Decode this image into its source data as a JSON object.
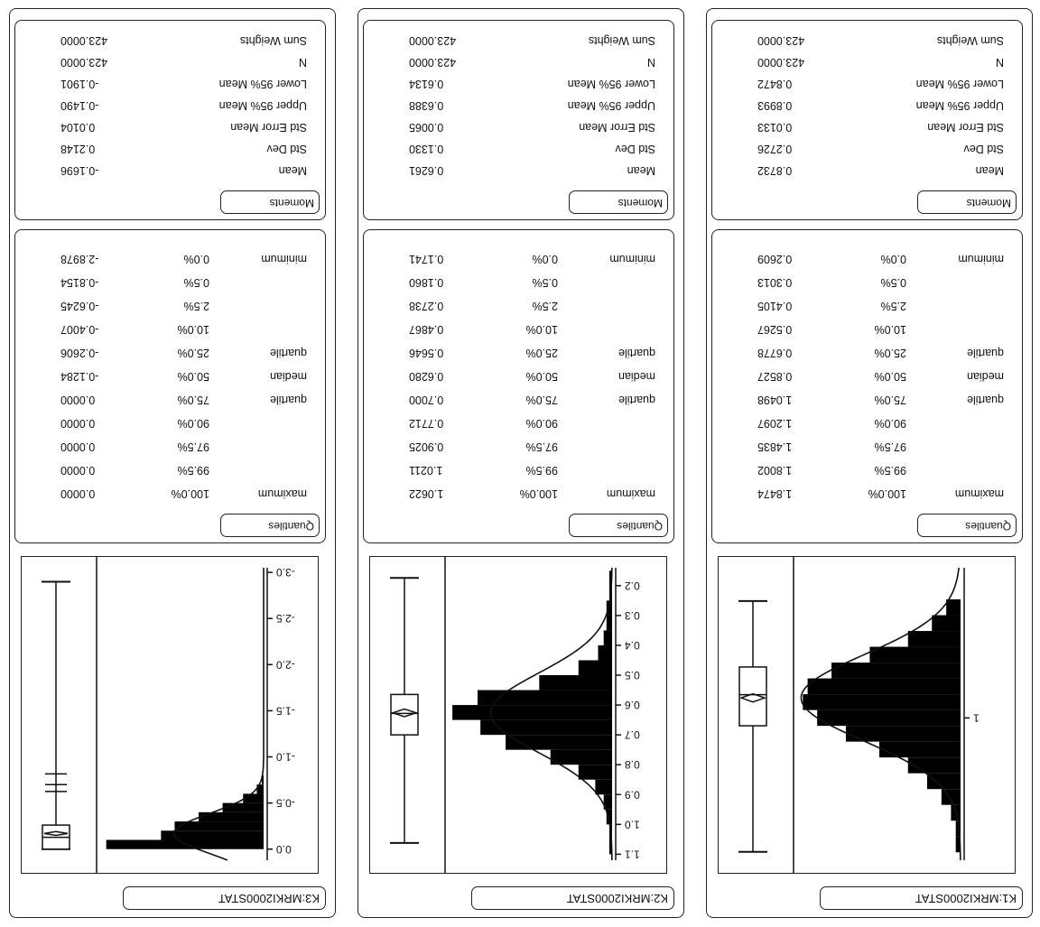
{
  "panels": [
    {
      "title": "K1:MRKI2000STAT",
      "axis_ticks": [
        {
          "v": 1,
          "label": "1"
        }
      ],
      "axis_range": [
        0.05,
        1.9
      ],
      "boxplot": {
        "min": 0.2609,
        "q1": 0.6778,
        "median": 0.8527,
        "q3": 1.0498,
        "max": 1.8474,
        "mean": 0.8732,
        "ci": [
          0.8472,
          0.8993
        ],
        "whisker_lo": 0.2609,
        "whisker_hi": 1.8474
      },
      "hist": [
        {
          "x0": 0.25,
          "x1": 0.35,
          "c": 3
        },
        {
          "x0": 0.35,
          "x1": 0.45,
          "c": 6
        },
        {
          "x0": 0.45,
          "x1": 0.55,
          "c": 11
        },
        {
          "x0": 0.55,
          "x1": 0.65,
          "c": 19
        },
        {
          "x0": 0.65,
          "x1": 0.75,
          "c": 27
        },
        {
          "x0": 0.75,
          "x1": 0.85,
          "c": 32
        },
        {
          "x0": 0.85,
          "x1": 0.95,
          "c": 33
        },
        {
          "x0": 0.95,
          "x1": 1.05,
          "c": 30
        },
        {
          "x0": 1.05,
          "x1": 1.15,
          "c": 24
        },
        {
          "x0": 1.15,
          "x1": 1.25,
          "c": 17
        },
        {
          "x0": 1.25,
          "x1": 1.35,
          "c": 11
        },
        {
          "x0": 1.35,
          "x1": 1.45,
          "c": 7
        },
        {
          "x0": 1.45,
          "x1": 1.55,
          "c": 4
        },
        {
          "x0": 1.55,
          "x1": 1.65,
          "c": 2
        },
        {
          "x0": 1.65,
          "x1": 1.75,
          "c": 1
        },
        {
          "x0": 1.75,
          "x1": 1.85,
          "c": 1
        }
      ],
      "hist_max": 34,
      "normal": {
        "mean": 0.8732,
        "sd": 0.2726
      },
      "quantiles_header": "Quantiles",
      "quantiles": [
        {
          "label": "maximum",
          "pct": "100.0%",
          "value": "1.8474"
        },
        {
          "label": "",
          "pct": "99.5%",
          "value": "1.8002"
        },
        {
          "label": "",
          "pct": "97.5%",
          "value": "1.4835"
        },
        {
          "label": "",
          "pct": "90.0%",
          "value": "1.2097"
        },
        {
          "label": "quartile",
          "pct": "75.0%",
          "value": "1.0498"
        },
        {
          "label": "median",
          "pct": "50.0%",
          "value": "0.8527"
        },
        {
          "label": "quartile",
          "pct": "25.0%",
          "value": "0.6778"
        },
        {
          "label": "",
          "pct": "10.0%",
          "value": "0.5267"
        },
        {
          "label": "",
          "pct": "2.5%",
          "value": "0.4105"
        },
        {
          "label": "",
          "pct": "0.5%",
          "value": "0.3013"
        },
        {
          "label": "minimum",
          "pct": "0.0%",
          "value": "0.2609"
        }
      ],
      "moments_header": "Moments",
      "moments": [
        {
          "label": "Mean",
          "value": "0.8732"
        },
        {
          "label": "Std Dev",
          "value": "0.2726"
        },
        {
          "label": "Std Error Mean",
          "value": "0.0133"
        },
        {
          "label": "Upper 95% Mean",
          "value": "0.8993"
        },
        {
          "label": "Lower 95% Mean",
          "value": "0.8472"
        },
        {
          "label": "N",
          "value": "423.0000"
        },
        {
          "label": "Sum Weights",
          "value": "423.0000"
        }
      ]
    },
    {
      "title": "K2:MRKI2000STAT",
      "axis_ticks": [
        {
          "v": 0.2,
          "label": "0.2"
        },
        {
          "v": 0.3,
          "label": "0.3"
        },
        {
          "v": 0.4,
          "label": "0.4"
        },
        {
          "v": 0.5,
          "label": "0.5"
        },
        {
          "v": 0.6,
          "label": "0.6"
        },
        {
          "v": 0.7,
          "label": "0.7"
        },
        {
          "v": 0.8,
          "label": "0.8"
        },
        {
          "v": 0.9,
          "label": "0.9"
        },
        {
          "v": 1.0,
          "label": "1.0"
        },
        {
          "v": 1.1,
          "label": "1.1"
        }
      ],
      "axis_range": [
        0.14,
        1.12
      ],
      "boxplot": {
        "min": 0.1741,
        "q1": 0.5646,
        "median": 0.628,
        "q3": 0.7,
        "max": 1.0622,
        "mean": 0.6261,
        "ci": [
          0.6134,
          0.6388
        ],
        "whisker_lo": 0.1741,
        "whisker_hi": 1.0622
      },
      "hist": [
        {
          "x0": 0.15,
          "x1": 0.2,
          "c": 1
        },
        {
          "x0": 0.2,
          "x1": 0.25,
          "c": 1
        },
        {
          "x0": 0.25,
          "x1": 0.3,
          "c": 2
        },
        {
          "x0": 0.3,
          "x1": 0.35,
          "c": 2
        },
        {
          "x0": 0.35,
          "x1": 0.4,
          "c": 3
        },
        {
          "x0": 0.4,
          "x1": 0.45,
          "c": 5
        },
        {
          "x0": 0.45,
          "x1": 0.5,
          "c": 12
        },
        {
          "x0": 0.5,
          "x1": 0.55,
          "c": 26
        },
        {
          "x0": 0.55,
          "x1": 0.6,
          "c": 48
        },
        {
          "x0": 0.6,
          "x1": 0.65,
          "c": 57
        },
        {
          "x0": 0.65,
          "x1": 0.7,
          "c": 47
        },
        {
          "x0": 0.7,
          "x1": 0.75,
          "c": 38
        },
        {
          "x0": 0.75,
          "x1": 0.8,
          "c": 22
        },
        {
          "x0": 0.8,
          "x1": 0.85,
          "c": 12
        },
        {
          "x0": 0.85,
          "x1": 0.9,
          "c": 6
        },
        {
          "x0": 0.9,
          "x1": 0.95,
          "c": 3
        },
        {
          "x0": 0.95,
          "x1": 1.0,
          "c": 2
        },
        {
          "x0": 1.0,
          "x1": 1.05,
          "c": 1
        },
        {
          "x0": 1.05,
          "x1": 1.1,
          "c": 1
        }
      ],
      "hist_max": 58,
      "normal": {
        "mean": 0.6261,
        "sd": 0.133
      },
      "quantiles_header": "Quantiles",
      "quantiles": [
        {
          "label": "maximum",
          "pct": "100.0%",
          "value": "1.0622"
        },
        {
          "label": "",
          "pct": "99.5%",
          "value": "1.0211"
        },
        {
          "label": "",
          "pct": "97.5%",
          "value": "0.9025"
        },
        {
          "label": "",
          "pct": "90.0%",
          "value": "0.7712"
        },
        {
          "label": "quartile",
          "pct": "75.0%",
          "value": "0.7000"
        },
        {
          "label": "median",
          "pct": "50.0%",
          "value": "0.6280"
        },
        {
          "label": "quartile",
          "pct": "25.0%",
          "value": "0.5646"
        },
        {
          "label": "",
          "pct": "10.0%",
          "value": "0.4867"
        },
        {
          "label": "",
          "pct": "2.5%",
          "value": "0.2738"
        },
        {
          "label": "",
          "pct": "0.5%",
          "value": "0.1860"
        },
        {
          "label": "minimum",
          "pct": "0.0%",
          "value": "0.1741"
        }
      ],
      "moments_header": "Moments",
      "moments": [
        {
          "label": "Mean",
          "value": "0.6261"
        },
        {
          "label": "Std Dev",
          "value": "0.1330"
        },
        {
          "label": "Std Error Mean",
          "value": "0.0065"
        },
        {
          "label": "Upper 95% Mean",
          "value": "0.6388"
        },
        {
          "label": "Lower 95% Mean",
          "value": "0.6134"
        },
        {
          "label": "N",
          "value": "423.0000"
        },
        {
          "label": "Sum Weights",
          "value": "423.0000"
        }
      ]
    },
    {
      "title": "K3:MRKI2000STAT",
      "axis_ticks": [
        {
          "v": -3.0,
          "label": "-3.0"
        },
        {
          "v": -2.5,
          "label": "-2.5"
        },
        {
          "v": -2.0,
          "label": "-2.0"
        },
        {
          "v": -1.5,
          "label": "-1.5"
        },
        {
          "v": -1.0,
          "label": "-1.0"
        },
        {
          "v": -0.5,
          "label": "-0.5"
        },
        {
          "v": 0.0,
          "label": "0.0"
        }
      ],
      "axis_range": [
        -3.05,
        0.12
      ],
      "boxplot": {
        "min": -2.8978,
        "q1": -0.2606,
        "median": -0.1284,
        "q3": 0.0,
        "max": 0.0,
        "mean": -0.1696,
        "ci": [
          -0.1901,
          -0.149
        ],
        "whisker_lo": -0.6245,
        "whisker_hi": 0.0
      },
      "outliers": [
        -0.6245,
        -0.7,
        -0.8154,
        -2.8978
      ],
      "hist": [
        {
          "x0": -0.8,
          "x1": -0.7,
          "c": 1
        },
        {
          "x0": -0.7,
          "x1": -0.6,
          "c": 4
        },
        {
          "x0": -0.6,
          "x1": -0.5,
          "c": 12
        },
        {
          "x0": -0.5,
          "x1": -0.4,
          "c": 24
        },
        {
          "x0": -0.4,
          "x1": -0.3,
          "c": 38
        },
        {
          "x0": -0.3,
          "x1": -0.2,
          "c": 52
        },
        {
          "x0": -0.2,
          "x1": -0.1,
          "c": 60
        },
        {
          "x0": -0.1,
          "x1": 0.0,
          "c": 92
        }
      ],
      "hist_max": 95,
      "normal": {
        "mean": -0.1696,
        "sd": 0.2148
      },
      "quantiles_header": "Quantiles",
      "quantiles": [
        {
          "label": "maximum",
          "pct": "100.0%",
          "value": "0.0000"
        },
        {
          "label": "",
          "pct": "99.5%",
          "value": "0.0000"
        },
        {
          "label": "",
          "pct": "97.5%",
          "value": "0.0000"
        },
        {
          "label": "",
          "pct": "90.0%",
          "value": "0.0000"
        },
        {
          "label": "quartile",
          "pct": "75.0%",
          "value": "0.0000"
        },
        {
          "label": "median",
          "pct": "50.0%",
          "value": "-0.1284"
        },
        {
          "label": "quartile",
          "pct": "25.0%",
          "value": "-0.2606"
        },
        {
          "label": "",
          "pct": "10.0%",
          "value": "-0.4007"
        },
        {
          "label": "",
          "pct": "2.5%",
          "value": "-0.6245"
        },
        {
          "label": "",
          "pct": "0.5%",
          "value": "-0.8154"
        },
        {
          "label": "minimum",
          "pct": "0.0%",
          "value": "-2.8978"
        }
      ],
      "moments_header": "Moments",
      "moments": [
        {
          "label": "Mean",
          "value": "-0.1696"
        },
        {
          "label": "Std Dev",
          "value": "0.2148"
        },
        {
          "label": "Std Error Mean",
          "value": "0.0104"
        },
        {
          "label": "Upper 95% Mean",
          "value": "-0.1490"
        },
        {
          "label": "Lower 95% Mean",
          "value": "-0.1901"
        },
        {
          "label": "N",
          "value": "423.0000"
        },
        {
          "label": "Sum Weights",
          "value": "423.0000"
        }
      ]
    }
  ]
}
